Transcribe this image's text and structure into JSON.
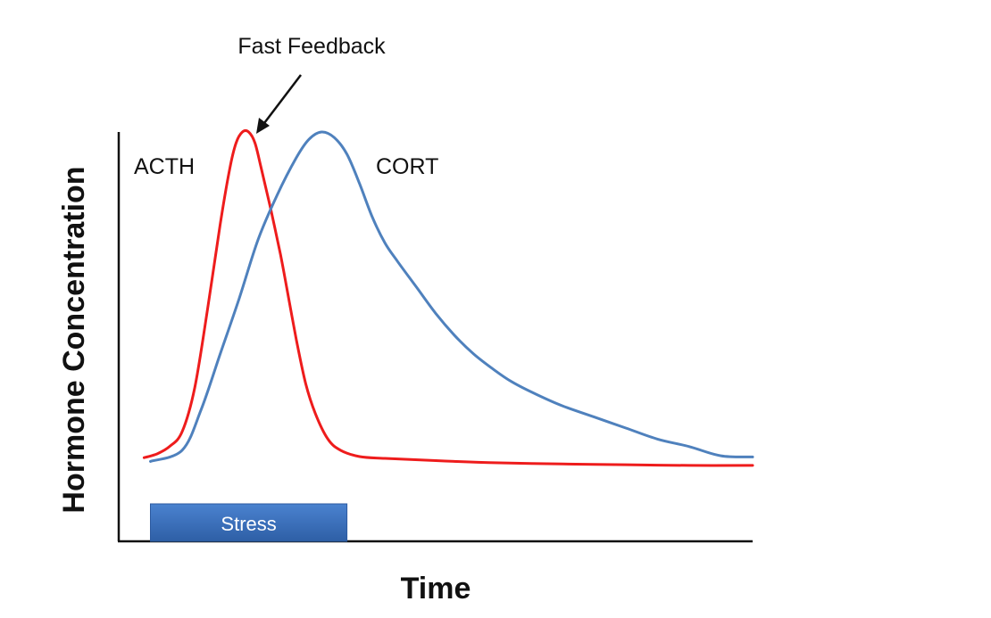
{
  "chart_data": {
    "type": "line",
    "title": "",
    "xlabel": "Time",
    "ylabel": "Hormone Concentration",
    "xlim": [
      0,
      100
    ],
    "ylim": [
      0,
      100
    ],
    "grid": false,
    "series": [
      {
        "name": "ACTH",
        "color": "#ee1c1c",
        "points": [
          [
            4,
            12
          ],
          [
            6,
            13
          ],
          [
            8,
            15
          ],
          [
            10,
            19
          ],
          [
            12,
            31
          ],
          [
            14,
            52
          ],
          [
            16,
            75
          ],
          [
            17.5,
            90
          ],
          [
            18.5,
            97
          ],
          [
            19.5,
            100
          ],
          [
            20.5,
            100
          ],
          [
            21.5,
            97
          ],
          [
            22.5,
            90
          ],
          [
            24,
            79
          ],
          [
            25.5,
            67
          ],
          [
            26.5,
            58
          ],
          [
            28,
            44
          ],
          [
            29.5,
            32
          ],
          [
            31,
            24
          ],
          [
            33,
            17
          ],
          [
            35,
            14
          ],
          [
            38,
            12.3
          ],
          [
            42,
            11.8
          ],
          [
            50,
            11.2
          ],
          [
            60,
            10.6
          ],
          [
            70,
            10.3
          ],
          [
            80,
            10.1
          ],
          [
            90,
            9.9
          ],
          [
            100,
            9.9
          ]
        ]
      },
      {
        "name": "CORT",
        "color": "#4f81bd",
        "points": [
          [
            5,
            11
          ],
          [
            10,
            14
          ],
          [
            13,
            25
          ],
          [
            16,
            40
          ],
          [
            19,
            55
          ],
          [
            22,
            71
          ],
          [
            25,
            83
          ],
          [
            28,
            93
          ],
          [
            30,
            98
          ],
          [
            32,
            100
          ],
          [
            34,
            98.5
          ],
          [
            36,
            94
          ],
          [
            38,
            86
          ],
          [
            40,
            77
          ],
          [
            42,
            70
          ],
          [
            44,
            65
          ],
          [
            47,
            58
          ],
          [
            50,
            51
          ],
          [
            53,
            45
          ],
          [
            56,
            40
          ],
          [
            59,
            36
          ],
          [
            62,
            32.5
          ],
          [
            66,
            29
          ],
          [
            70,
            26
          ],
          [
            75,
            23
          ],
          [
            80,
            20
          ],
          [
            85,
            17
          ],
          [
            90,
            15
          ],
          [
            95,
            12.5
          ],
          [
            100,
            12.2
          ]
        ]
      }
    ],
    "annotations": [
      {
        "text": "Fast Feedback",
        "arrow_to": [
          21.5,
          100
        ]
      }
    ],
    "stress_bar": {
      "label": "Stress",
      "x_start": 5,
      "x_end": 36,
      "color": "#3f74c0"
    }
  }
}
